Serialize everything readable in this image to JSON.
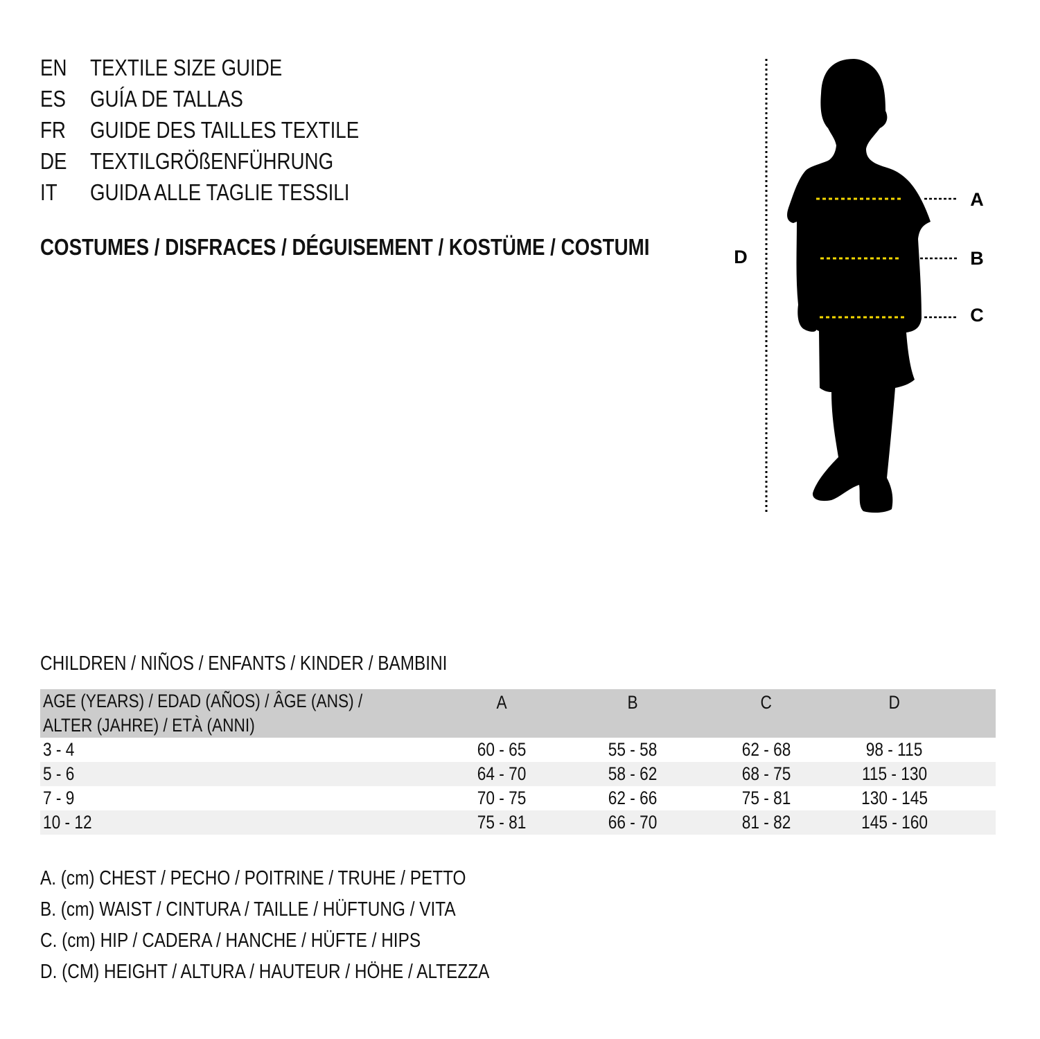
{
  "guide_titles": [
    {
      "code": "EN",
      "text": "TEXTILE SIZE GUIDE"
    },
    {
      "code": "ES",
      "text": "GUÍA DE TALLAS"
    },
    {
      "code": "FR",
      "text": "GUIDE DES TAILLES TEXTILE"
    },
    {
      "code": "DE",
      "text": "TEXTILGRÖßENFÜHRUNG"
    },
    {
      "code": "IT",
      "text": "GUIDA ALLE TAGLIE TESSILI"
    }
  ],
  "category": "COSTUMES / DISFRACES / DÉGUISEMENT / KOSTÜME / COSTUMI",
  "figure": {
    "labels": {
      "a": "A",
      "b": "B",
      "c": "C",
      "d": "D"
    },
    "silhouette_color": "#000000",
    "measure_line_color": "#f5d800"
  },
  "table": {
    "caption": "CHILDREN / NIÑOS / ENFANTS / KINDER / BAMBINI",
    "header": {
      "age_line1": "AGE (YEARS) / EDAD (AÑOS) / ÂGE (ANS) /",
      "age_line2": "ALTER (JAHRE) / ETÀ (ANNI)",
      "a": "A",
      "b": "B",
      "c": "C",
      "d": "D"
    },
    "rows": [
      {
        "age": "3 - 4",
        "a": "60 - 65",
        "b": "55 - 58",
        "c": "62 - 68",
        "d": "98 - 115"
      },
      {
        "age": "5 - 6",
        "a": "64 - 70",
        "b": "58 - 62",
        "c": "68 - 75",
        "d": "115 - 130"
      },
      {
        "age": "7 - 9",
        "a": "70 - 75",
        "b": "62 - 66",
        "c": "75 - 81",
        "d": "130 - 145"
      },
      {
        "age": "10 - 12",
        "a": "75 - 81",
        "b": "66 - 70",
        "c": "81 - 82",
        "d": "145 - 160"
      }
    ],
    "header_bg": "#cccccc",
    "alt_row_bg": "#f0f0f0"
  },
  "legend": [
    "A. (cm) CHEST / PECHO / POITRINE / TRUHE / PETTO",
    "B. (cm) WAIST / CINTURA / TAILLE / HÜFTUNG / VITA",
    "C. (cm) HIP / CADERA / HANCHE / HÜFTE / HIPS",
    "D. (CM) HEIGHT / ALTURA / HAUTEUR / HÖHE / ALTEZZA"
  ]
}
